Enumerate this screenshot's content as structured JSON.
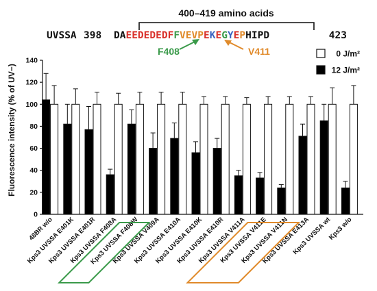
{
  "annotation": {
    "bracket_label": "400–419 amino acids",
    "protein": "UVSSA",
    "start": "398",
    "end": "423",
    "sequence": [
      {
        "t": "DA",
        "c": "#111111"
      },
      {
        "t": "EEDEDEDF",
        "c": "#d9302a"
      },
      {
        "t": "F",
        "c": "#3a9a4a"
      },
      {
        "t": "VE",
        "c": "#e08a2a"
      },
      {
        "t": "V",
        "c": "#e08a2a"
      },
      {
        "t": "P",
        "c": "#e08a2a"
      },
      {
        "t": "E",
        "c": "#d9302a"
      },
      {
        "t": "K",
        "c": "#3a62c0"
      },
      {
        "t": "E",
        "c": "#d9302a"
      },
      {
        "t": "G",
        "c": "#3a9a4a"
      },
      {
        "t": "Y",
        "c": "#3a62c0"
      },
      {
        "t": "E",
        "c": "#d9302a"
      },
      {
        "t": "P",
        "c": "#e08a2a"
      },
      {
        "t": "HIPD",
        "c": "#111111"
      }
    ],
    "mutants": [
      {
        "label": "F408",
        "color": "#3a9a4a"
      },
      {
        "label": "V411",
        "color": "#e08a2a"
      }
    ]
  },
  "colors": {
    "green": "#3a9a4a",
    "orange": "#e08a2a",
    "filled_bar": "#000000",
    "open_bar": "#ffffff"
  },
  "chart_data": {
    "type": "bar",
    "ylabel": "Fluorescence intensity (% of UV−)",
    "ylim": [
      0,
      140
    ],
    "yticks": [
      0,
      20,
      40,
      60,
      80,
      100,
      120,
      140
    ],
    "legend_position": "top-right",
    "categories": [
      "48BR w/o",
      "Kps3 UVSSA E401K",
      "Kps3 UVSSA E401R",
      "Kps3 UVSSA F408A",
      "Kps3 UVSSA F408W",
      "Kps3 UVSSA V409A",
      "Kps3 UVSSA E410A",
      "Kps3 UVSSA E410K",
      "Kps3 UVSSA E410R",
      "Kps3 UVSSA V411A",
      "Kps3 UVSSA V411E",
      "Kps3 UVSSA V411N",
      "Kps3 UVSSA E413A",
      "Kps3 UVSSA wt",
      "Kps3 w/o"
    ],
    "series": [
      {
        "name": "12 J/m²",
        "fill": "#000000",
        "values": [
          104,
          82,
          77,
          36,
          82,
          60,
          69,
          56,
          60,
          35,
          33,
          24,
          71,
          85,
          24
        ],
        "errors": [
          24,
          18,
          21,
          5,
          13,
          14,
          14,
          10,
          9,
          5,
          5,
          3,
          11,
          15,
          6
        ]
      },
      {
        "name": "0 J/m²",
        "fill": "#ffffff",
        "values": [
          100,
          100,
          100,
          100,
          100,
          100,
          100,
          100,
          100,
          100,
          100,
          100,
          100,
          100,
          100
        ],
        "errors": [
          17,
          14,
          11,
          10,
          11,
          11,
          11,
          7,
          7,
          6,
          7,
          7,
          7,
          15,
          17
        ]
      }
    ],
    "highlight_boxes": [
      {
        "from": "Kps3 UVSSA F408A",
        "to": "Kps3 UVSSA F408W",
        "color": "#3a9a4a"
      },
      {
        "from": "Kps3 UVSSA V411A",
        "to": "Kps3 UVSSA V411N",
        "color": "#e08a2a"
      }
    ]
  }
}
